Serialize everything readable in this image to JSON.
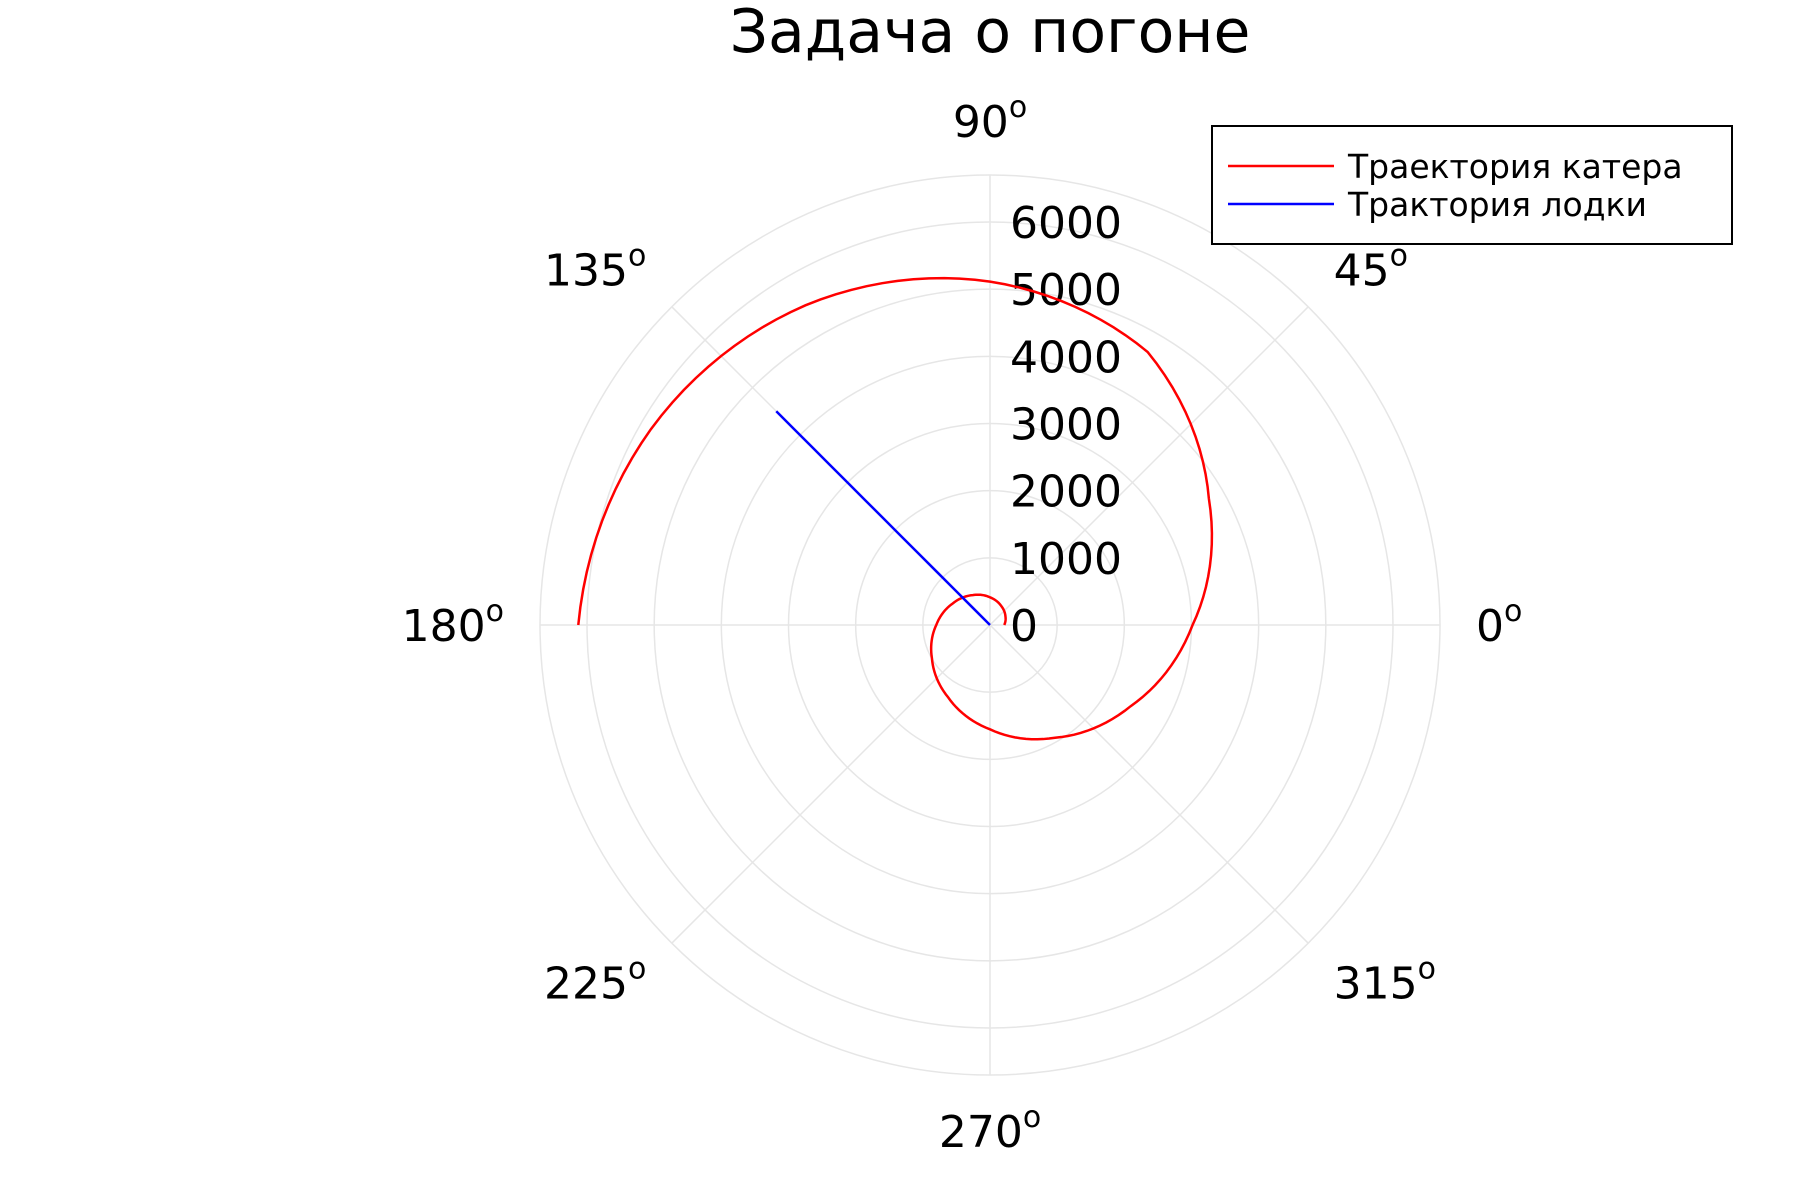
{
  "chart_data": {
    "type": "line",
    "projection": "polar",
    "title": "Задача о погоне",
    "r_ticks": [
      "0",
      "1000",
      "2000",
      "3000",
      "4000",
      "5000",
      "6000"
    ],
    "r_max": 6700,
    "angle_ticks": [
      {
        "deg": 0,
        "label": "0"
      },
      {
        "deg": 45,
        "label": "45"
      },
      {
        "deg": 90,
        "label": "90"
      },
      {
        "deg": 135,
        "label": "135"
      },
      {
        "deg": 180,
        "label": "180"
      },
      {
        "deg": 225,
        "label": "225"
      },
      {
        "deg": 270,
        "label": "270"
      },
      {
        "deg": 315,
        "label": "315"
      }
    ],
    "degree_mark": "o",
    "grid": true,
    "legend": {
      "position": "top-right"
    },
    "series": [
      {
        "name": "Траектория катера",
        "color": "#ff0000",
        "theta_deg": [
          0,
          30,
          60,
          90,
          120,
          150,
          180,
          210,
          240,
          270,
          300,
          330,
          360,
          390,
          420,
          450,
          480,
          510,
          540
        ],
        "r": [
          212,
          265,
          330,
          412,
          514,
          641,
          800,
          998,
          1245,
          1553,
          1938,
          2418,
          3016,
          3763,
          4694,
          5113,
          5496,
          5830,
          6130
        ]
      },
      {
        "name": "Трактория лодки",
        "color": "#0000ff",
        "theta_deg": [
          135,
          135
        ],
        "r": [
          0,
          4500
        ]
      }
    ]
  }
}
